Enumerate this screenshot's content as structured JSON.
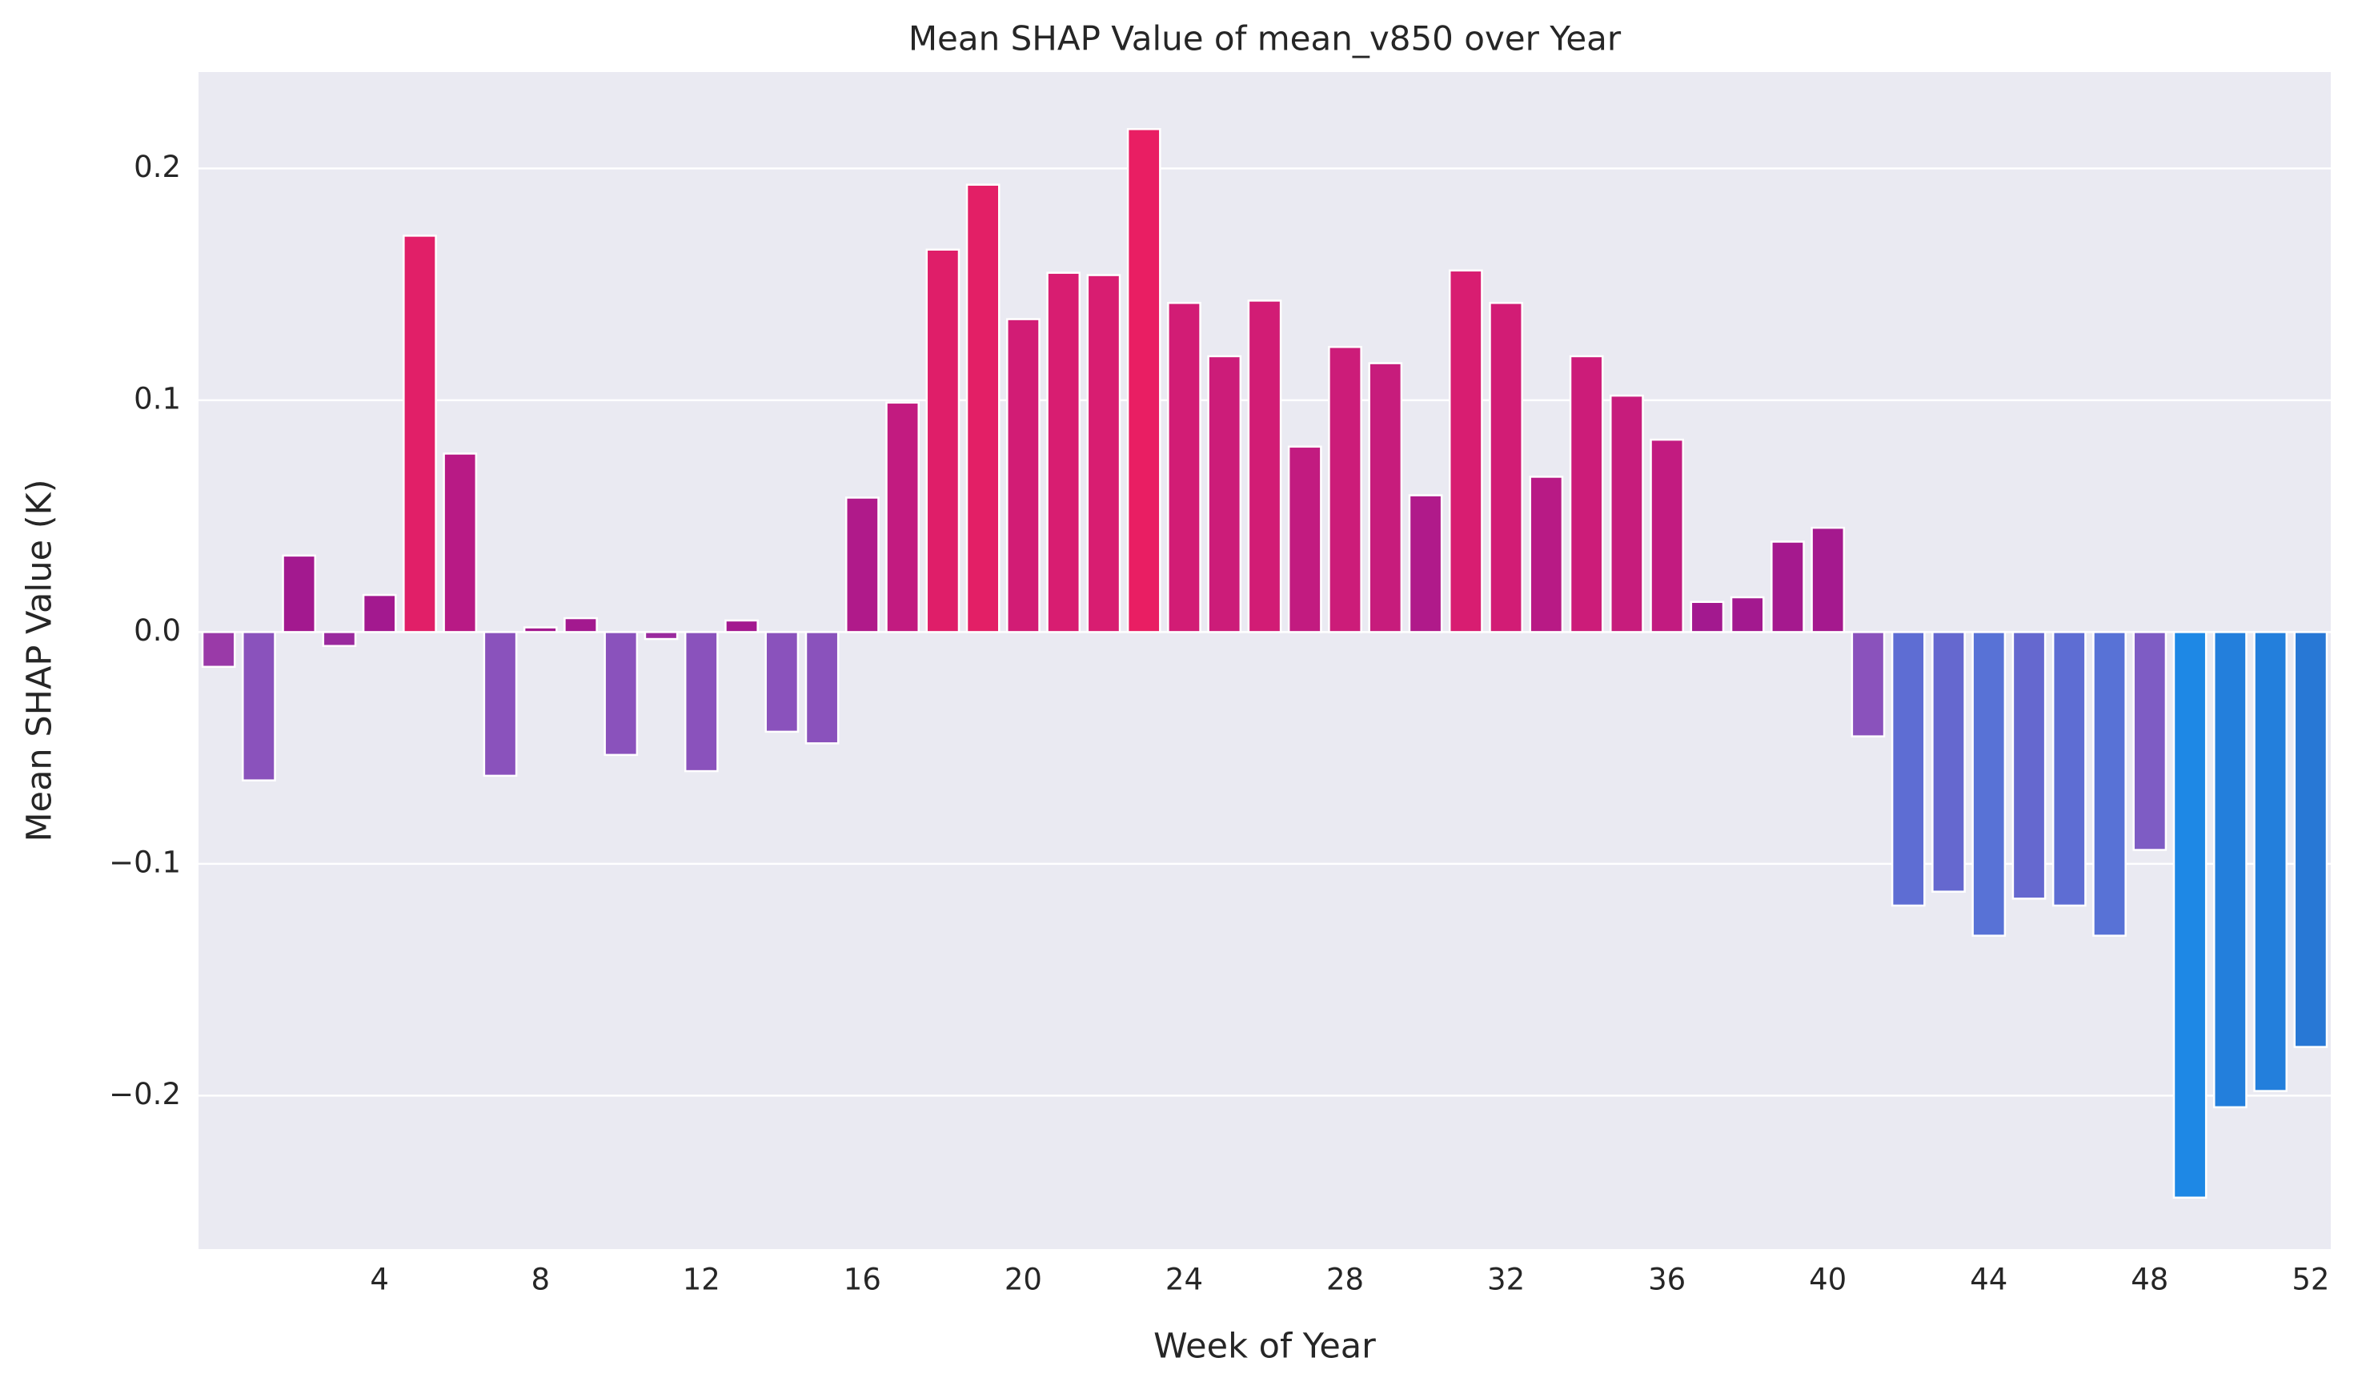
{
  "chart_data": {
    "type": "bar",
    "title": "Mean SHAP Value of mean_v850 over Year",
    "x_label": "Week of Year",
    "y_label": "Mean SHAP Value (K)",
    "categories": [
      null,
      null,
      null,
      null,
      "4",
      null,
      null,
      null,
      "8",
      null,
      null,
      null,
      "12",
      null,
      null,
      null,
      "16",
      null,
      null,
      null,
      "20",
      null,
      null,
      null,
      "24",
      null,
      null,
      null,
      "28",
      null,
      null,
      null,
      "32",
      null,
      null,
      null,
      "36",
      null,
      null,
      null,
      "40",
      null,
      null,
      null,
      "44",
      null,
      null,
      null,
      "48",
      null,
      null,
      null,
      "52"
    ],
    "values": [
      -0.015,
      -0.064,
      0.033,
      -0.006,
      0.016,
      0.171,
      0.077,
      -0.062,
      0.002,
      0.006,
      -0.053,
      -0.003,
      -0.06,
      0.005,
      -0.043,
      -0.048,
      0.058,
      0.099,
      0.165,
      0.193,
      0.135,
      0.155,
      0.154,
      0.217,
      0.142,
      0.119,
      0.143,
      0.08,
      0.123,
      0.116,
      0.059,
      0.156,
      0.142,
      0.067,
      0.119,
      0.102,
      0.083,
      0.013,
      0.015,
      0.039,
      0.045,
      -0.045,
      -0.118,
      -0.112,
      -0.131,
      -0.115,
      -0.118,
      -0.131,
      -0.094,
      -0.244,
      -0.205,
      -0.198,
      -0.179
    ],
    "colors": [
      "#9a3aa8",
      "#8a52bc",
      "#a3198f",
      "#9a2a9e",
      "#a3198f",
      "#e11f68",
      "#b81a85",
      "#8a52bc",
      "#a3198f",
      "#a3198f",
      "#8a52bc",
      "#9a2a9e",
      "#8a52bc",
      "#a3198f",
      "#8a52bc",
      "#8a52bc",
      "#b01a8a",
      "#c21b80",
      "#df1e69",
      "#e31f66",
      "#d21c75",
      "#d81d71",
      "#d81d71",
      "#e91e63",
      "#d21c75",
      "#cc1c79",
      "#d21c75",
      "#c21b80",
      "#cc1c79",
      "#c71c7c",
      "#b01a8a",
      "#d81d71",
      "#d21c75",
      "#b81a85",
      "#cc1c79",
      "#c71c7c",
      "#c21b80",
      "#a3198f",
      "#a3198f",
      "#a5198e",
      "#a5198e",
      "#8a52bc",
      "#5e6dd3",
      "#6568cf",
      "#5872d6",
      "#6568cf",
      "#5e6dd3",
      "#5872d6",
      "#7e5cc4",
      "#1e88e5",
      "#237fdc",
      "#237fdc",
      "#2878d5"
    ],
    "edge_color": "#ffffff",
    "ylim": [
      -0.2662,
      0.2416
    ],
    "yticks": [
      {
        "value": -0.2,
        "label": "−0.2"
      },
      {
        "value": -0.1,
        "label": "−0.1"
      },
      {
        "value": 0,
        "label": "0.0"
      },
      0.1,
      0.2
    ],
    "grid": true,
    "background": "#eaeaf2"
  }
}
